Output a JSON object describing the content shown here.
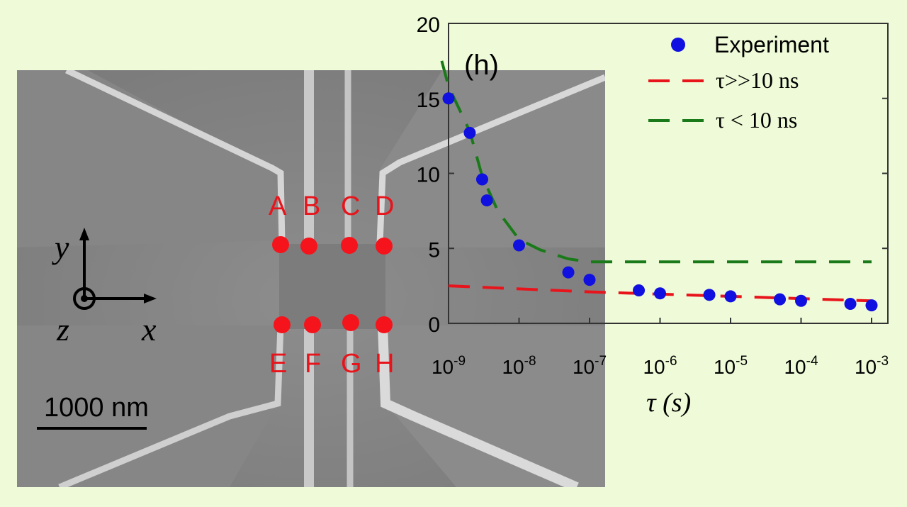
{
  "sem": {
    "contact_labels_top": [
      "A",
      "B",
      "C",
      "D"
    ],
    "contact_labels_bottom": [
      "E",
      "F",
      "G",
      "H"
    ],
    "axis_y": "y",
    "axis_x": "x",
    "axis_z": "z",
    "scale_bar": "1000 nm"
  },
  "colors": {
    "background": "#effbd8",
    "experiment": "#1010e0",
    "fit_long": "#e8141c",
    "fit_short": "#1a7a1a",
    "contact_dot": "#f5141c"
  },
  "chart_data": {
    "type": "scatter",
    "panel_label": "(h)",
    "xlabel": "τ (s)",
    "ylabel": "",
    "x_scale": "log",
    "xlim": [
      1e-09,
      0.001
    ],
    "ylim": [
      0,
      20
    ],
    "xtick_labels": [
      "10-9",
      "10-8",
      "10-7",
      "10-6",
      "10-5",
      "10-4",
      "10-3"
    ],
    "xtick_values": [
      1e-09,
      1e-08,
      1e-07,
      1e-06,
      1e-05,
      0.0001,
      0.001
    ],
    "yticks": [
      0,
      5,
      10,
      15,
      20
    ],
    "legend_position": "top-right",
    "series": [
      {
        "name": "Experiment",
        "kind": "points",
        "x": [
          1e-09,
          2e-09,
          3e-09,
          3.5e-09,
          1e-08,
          5e-08,
          1e-07,
          5e-07,
          1e-06,
          5e-06,
          1e-05,
          5e-05,
          0.0001,
          0.0005,
          0.001
        ],
        "y": [
          15.0,
          12.7,
          9.6,
          8.2,
          5.2,
          3.4,
          2.9,
          2.2,
          2.0,
          1.9,
          1.8,
          1.6,
          1.5,
          1.3,
          1.2
        ]
      },
      {
        "name": "τ>>10 ns",
        "kind": "dashed",
        "x": [
          1e-09,
          1e-08,
          1e-07,
          1e-06,
          1e-05,
          0.0001,
          0.001
        ],
        "y": [
          2.5,
          2.3,
          2.1,
          1.95,
          1.8,
          1.65,
          1.5
        ]
      },
      {
        "name": "τ < 10 ns",
        "kind": "dashed",
        "x": [
          8e-10,
          1e-09,
          2e-09,
          3e-09,
          5e-09,
          1e-08,
          2e-08,
          5e-08,
          1e-07,
          1e-06,
          1e-05,
          0.0001,
          0.001
        ],
        "y": [
          17.5,
          15.8,
          12.8,
          9.8,
          7.5,
          5.6,
          4.9,
          4.3,
          4.1,
          4.1,
          4.1,
          4.1,
          4.1
        ]
      }
    ]
  }
}
